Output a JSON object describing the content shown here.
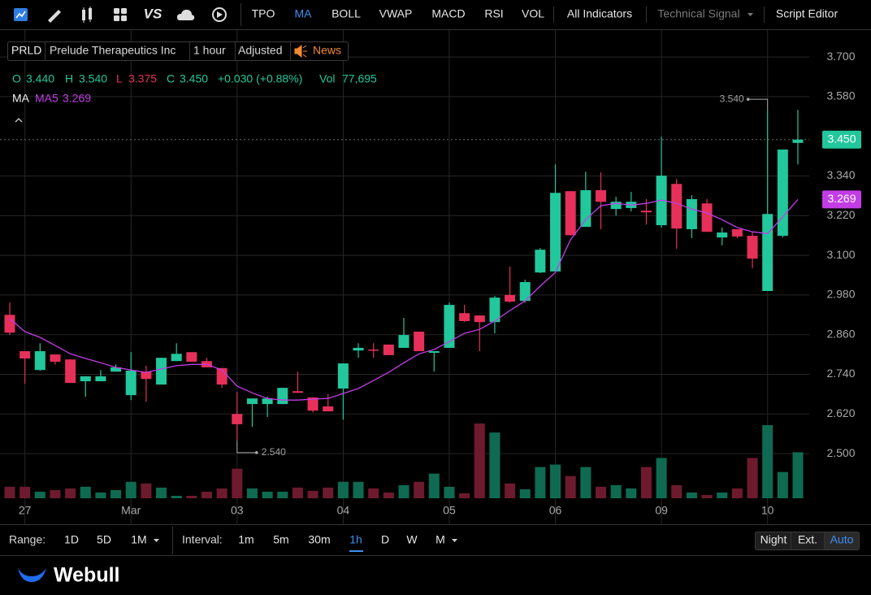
{
  "toolbar": {
    "vs_icon": "VS",
    "items": [
      "TPO",
      "MA",
      "BOLL",
      "VWAP",
      "MACD",
      "RSI",
      "VOL",
      "All Indicators"
    ],
    "technical_signal": "Technical Signal",
    "script_editor": "Script Editor"
  },
  "symbol_bar": {
    "ticker": "PRLD",
    "name": "Prelude Therapeutics Inc",
    "interval": "1 hour",
    "adjustment": "Adjusted",
    "news": "News"
  },
  "quote": {
    "open_label": "O",
    "open": "3.440",
    "high_label": "H",
    "high": "3.540",
    "low_label": "L",
    "low": "3.375",
    "close_label": "C",
    "close": "3.450",
    "change": "+0.030 (+0.88%)",
    "volume_label": "Vol",
    "volume": "77,695"
  },
  "indicator": {
    "label": "MA"
  },
  "chart_data": {
    "type": "candlestick",
    "categories": [
      null,
      "27",
      null,
      null,
      null,
      null,
      null,
      null,
      "Mar",
      null,
      null,
      null,
      null,
      null,
      null,
      "03",
      null,
      null,
      null,
      null,
      null,
      null,
      "04",
      null,
      null,
      null,
      null,
      null,
      null,
      "05",
      null,
      null,
      null,
      null,
      null,
      null,
      "06",
      null,
      null,
      null,
      null,
      null,
      null,
      "09",
      null,
      null,
      null,
      null,
      null,
      null,
      "10",
      null,
      null
    ],
    "open": [
      2.92,
      2.81,
      2.753,
      2.8,
      2.785,
      2.719,
      2.719,
      2.748,
      2.677,
      2.748,
      2.709,
      2.78,
      2.807,
      2.78,
      2.759,
      2.62,
      2.65,
      2.65,
      2.65,
      2.689,
      2.67,
      2.643,
      2.697,
      2.812,
      2.815,
      2.83,
      2.82,
      2.869,
      2.805,
      2.82,
      2.925,
      2.918,
      2.898,
      2.98,
      2.962,
      3.048,
      3.051,
      3.294,
      3.186,
      3.297,
      3.24,
      3.243,
      3.235,
      3.191,
      3.316,
      3.179,
      3.257,
      3.154,
      3.179,
      3.159,
      2.992,
      3.159,
      3.44
    ],
    "high": [
      2.957,
      2.81,
      2.834,
      2.8,
      2.785,
      2.734,
      2.753,
      2.77,
      2.807,
      2.766,
      2.79,
      2.834,
      2.807,
      2.79,
      2.759,
      2.687,
      2.667,
      2.672,
      2.699,
      2.748,
      2.67,
      2.68,
      2.773,
      2.834,
      2.834,
      2.83,
      2.911,
      2.869,
      2.81,
      2.957,
      2.95,
      2.918,
      2.977,
      3.066,
      3.026,
      3.122,
      3.375,
      3.294,
      3.353,
      3.351,
      3.277,
      3.292,
      3.27,
      3.459,
      3.331,
      3.282,
      3.27,
      3.184,
      3.179,
      3.171,
      3.54,
      3.42,
      3.54
    ],
    "low": [
      2.859,
      2.711,
      2.751,
      2.77,
      2.714,
      2.672,
      2.719,
      2.748,
      2.662,
      2.657,
      2.709,
      2.78,
      2.778,
      2.761,
      2.699,
      2.54,
      2.581,
      2.611,
      2.65,
      2.684,
      2.625,
      2.628,
      2.603,
      2.79,
      2.79,
      2.798,
      2.82,
      2.81,
      2.748,
      2.82,
      2.898,
      2.81,
      2.864,
      2.957,
      2.957,
      3.046,
      3.051,
      3.159,
      3.186,
      3.179,
      3.22,
      3.233,
      3.193,
      3.184,
      3.12,
      3.152,
      3.171,
      3.13,
      3.152,
      3.061,
      2.992,
      3.154,
      3.375
    ],
    "close": [
      2.866,
      2.788,
      2.81,
      2.778,
      2.714,
      2.734,
      2.734,
      2.761,
      2.751,
      2.726,
      2.79,
      2.802,
      2.778,
      2.761,
      2.709,
      2.589,
      2.667,
      2.667,
      2.699,
      2.684,
      2.63,
      2.628,
      2.773,
      2.82,
      2.812,
      2.798,
      2.859,
      2.81,
      2.81,
      2.95,
      2.901,
      2.898,
      2.972,
      2.96,
      3.019,
      3.117,
      3.289,
      3.161,
      3.297,
      3.262,
      3.262,
      3.262,
      3.23,
      3.341,
      3.181,
      3.27,
      3.171,
      3.169,
      3.157,
      3.09,
      3.225,
      3.42,
      3.45
    ],
    "volume": [
      19420,
      19420,
      11100,
      13870,
      16640,
      19420,
      9710,
      13870,
      27740,
      24970,
      18030,
      4160,
      4160,
      11100,
      16640,
      49930,
      16640,
      11100,
      11100,
      18030,
      12480,
      18030,
      27740,
      27740,
      16640,
      9710,
      22190,
      27740,
      41610,
      19420,
      8320,
      126220,
      110960,
      24970,
      15260,
      52710,
      56870,
      37450,
      52710,
      19420,
      22190,
      16640,
      52710,
      67960,
      22190,
      9710,
      5550,
      9710,
      16640,
      67960,
      123440,
      44380,
      77695
    ],
    "up_color": "#22c79c",
    "down_color": "#e6305a",
    "up_volume_color": "#0e6b52",
    "down_volume_color": "#6e1a2e",
    "ma5": {
      "name": "MA5",
      "color": "#c23de6",
      "values": [
        2.908,
        2.869,
        2.852,
        2.827,
        2.802,
        2.788,
        2.775,
        2.761,
        2.753,
        2.746,
        2.756,
        2.766,
        2.77,
        2.77,
        2.753,
        2.704,
        2.684,
        2.667,
        2.662,
        2.662,
        2.665,
        2.667,
        2.682,
        2.697,
        2.721,
        2.746,
        2.775,
        2.802,
        2.815,
        2.839,
        2.864,
        2.876,
        2.901,
        2.933,
        2.962,
        3.007,
        3.048,
        3.147,
        3.208,
        3.25,
        3.257,
        3.252,
        3.257,
        3.267,
        3.257,
        3.24,
        3.228,
        3.208,
        3.184,
        3.171,
        3.166,
        3.216,
        3.269
      ],
      "last": {
        "value": 3.269,
        "label": "3.269"
      }
    },
    "last_price": {
      "value": 3.45,
      "label": "3.450"
    },
    "high_marker": {
      "value": 3.54,
      "label": "3.540"
    },
    "low_marker": {
      "value": 2.54,
      "label": "2.540"
    },
    "ylim": [
      2.365,
      3.774
    ],
    "yticks": [
      {
        "value": 3.7,
        "label": "3.700"
      },
      {
        "value": 3.58,
        "label": "3.580"
      },
      {
        "value": 3.34,
        "label": "3.340"
      },
      {
        "value": 3.22,
        "label": "3.220"
      },
      {
        "value": 3.1,
        "label": "3.100"
      },
      {
        "value": 2.98,
        "label": "2.980"
      },
      {
        "value": 2.86,
        "label": "2.860"
      },
      {
        "value": 2.74,
        "label": "2.740"
      },
      {
        "value": 2.62,
        "label": "2.620"
      },
      {
        "value": 2.5,
        "label": "2.500"
      }
    ],
    "grid": true
  },
  "range_bar": {
    "range_label": "Range:",
    "ranges": [
      "1D",
      "5D",
      "1M"
    ],
    "interval_label": "Interval:",
    "intervals": [
      "1m",
      "5m",
      "30m",
      "1h",
      "D",
      "W",
      "M"
    ],
    "sessions": [
      "Night",
      "Ext.",
      "Auto"
    ]
  },
  "footer": {
    "brand": "Webull"
  }
}
